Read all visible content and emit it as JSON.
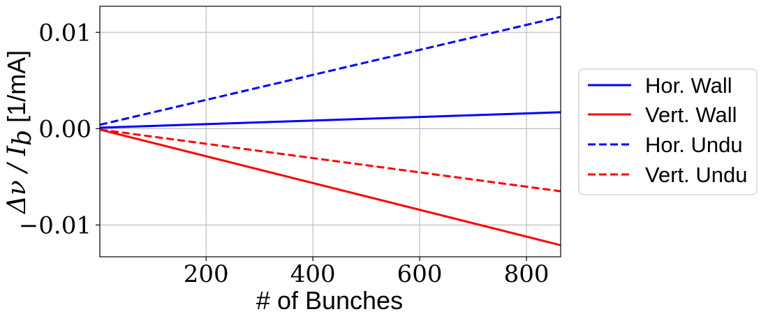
{
  "chart_data": {
    "type": "line",
    "xlabel": "# of Bunches",
    "ylabel": {
      "math": "Δν / I",
      "sub": "b",
      "unit": "[1/mA]"
    },
    "xlim": [
      1,
      864
    ],
    "ylim": [
      -0.0133,
      0.0127
    ],
    "xticks": [
      200,
      400,
      600,
      800
    ],
    "xtick_labels": [
      "200",
      "400",
      "600",
      "800"
    ],
    "yticks": [
      -0.01,
      0.0,
      0.01
    ],
    "ytick_labels": [
      "−0.01",
      "0.00",
      "0.01"
    ],
    "grid": true,
    "legend_position": "right, outside plot",
    "series": [
      {
        "name": "Hor. Wall",
        "color": "#0000ff",
        "dash": "solid",
        "x": [
          1,
          864
        ],
        "y": [
          0.0001,
          0.0017
        ]
      },
      {
        "name": "Vert. Wall",
        "color": "#ff0000",
        "dash": "solid",
        "x": [
          1,
          864
        ],
        "y": [
          -0.0001,
          -0.0121
        ]
      },
      {
        "name": "Hor. Undu",
        "color": "#0000ff",
        "dash": "dashed",
        "x": [
          1,
          864
        ],
        "y": [
          0.0004,
          0.0116
        ]
      },
      {
        "name": "Vert. Undu",
        "color": "#ff0000",
        "dash": "dashed",
        "x": [
          1,
          864
        ],
        "y": [
          -0.0001,
          -0.0065
        ]
      }
    ]
  }
}
